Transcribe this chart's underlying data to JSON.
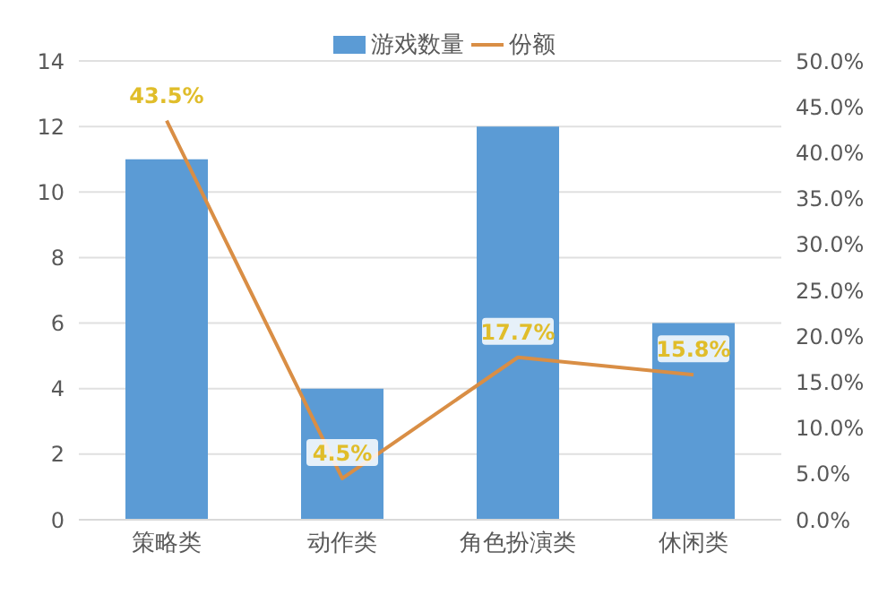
{
  "chart_data": {
    "type": "bar",
    "categories": [
      "策略类",
      "动作类",
      "角色扮演类",
      "休闲类"
    ],
    "series": [
      {
        "name": "游戏数量",
        "color": "#5b9bd5",
        "values": [
          11,
          4,
          12,
          6
        ]
      },
      {
        "name": "份额",
        "type": "line",
        "axis": "y2",
        "color": "#d98e45",
        "values": [
          43.5,
          4.5,
          17.7,
          15.8
        ],
        "value_labels": [
          "43.5%",
          "4.5%",
          "17.7%",
          "15.8%"
        ]
      }
    ],
    "ylim": [
      0,
      14
    ],
    "yticks": [
      0,
      2,
      4,
      6,
      8,
      10,
      12,
      14
    ],
    "y2lim": [
      0,
      50
    ],
    "y2ticks": [
      {
        "value": 0,
        "label": "0.0%"
      },
      {
        "value": 5,
        "label": "5.0%"
      },
      {
        "value": 10,
        "label": "10.0%"
      },
      {
        "value": 15,
        "label": "15.0%"
      },
      {
        "value": 20,
        "label": "20.0%"
      },
      {
        "value": 25,
        "label": "25.0%"
      },
      {
        "value": 30,
        "label": "30.0%"
      },
      {
        "value": 35,
        "label": "35.0%"
      },
      {
        "value": 40,
        "label": "40.0%"
      },
      {
        "value": 45,
        "label": "45.0%"
      },
      {
        "value": 50,
        "label": "50.0%"
      }
    ],
    "grid": "y",
    "legend": "top",
    "marker": "none"
  }
}
